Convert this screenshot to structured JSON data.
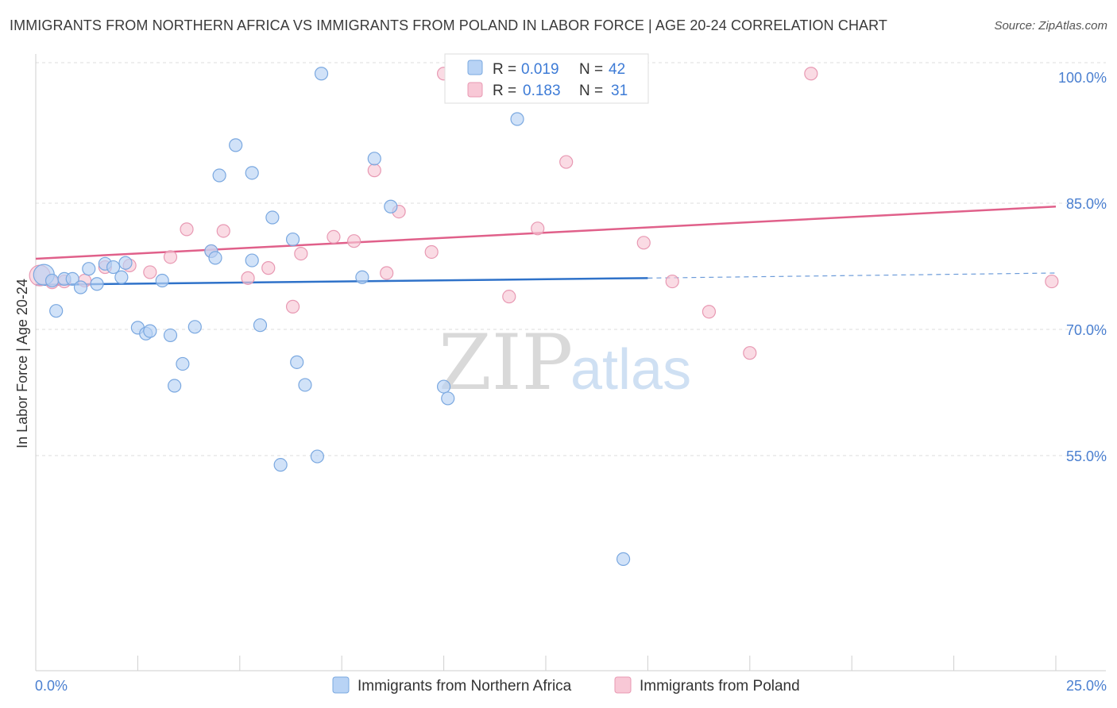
{
  "title": "IMMIGRANTS FROM NORTHERN AFRICA VS IMMIGRANTS FROM POLAND IN LABOR FORCE | AGE 20-24 CORRELATION CHART",
  "source": "Source: ZipAtlas.com",
  "watermark": {
    "zip": "ZIP",
    "atlas": "atlas"
  },
  "colors": {
    "blue_fill": "#b8d3f5",
    "blue_stroke": "#7aa8e0",
    "blue_line": "#2f72c9",
    "pink_fill": "#f8c8d6",
    "pink_stroke": "#e899b3",
    "pink_line": "#e0608a"
  },
  "legend": {
    "rows": [
      {
        "r_label": "R =",
        "r_value": "0.019",
        "n_label": "N =",
        "n_value": "42"
      },
      {
        "r_label": "R =",
        "r_value": "0.183",
        "n_label": "N =",
        "n_value": "31"
      }
    ]
  },
  "chart_data": {
    "type": "scatter",
    "title": "IMMIGRANTS FROM NORTHERN AFRICA VS IMMIGRANTS FROM POLAND IN LABOR FORCE | AGE 20-24 CORRELATION CHART",
    "xlabel": "",
    "ylabel": "In Labor Force | Age 20-24",
    "xlim": [
      0,
      25
    ],
    "ylim": [
      40,
      102
    ],
    "x_tick_labels": [
      "0.0%",
      "25.0%"
    ],
    "y_ticks": [
      55,
      70,
      85,
      100
    ],
    "y_tick_labels": [
      "55.0%",
      "70.0%",
      "85.0%",
      "100.0%"
    ],
    "grid": true,
    "legend_position": "top-center",
    "series": [
      {
        "name": "Immigrants from Northern Africa",
        "color": "#b8d3f5",
        "r": 0.019,
        "n": 42,
        "trend": {
          "x0": 0,
          "y0": 75.3,
          "x1": 15,
          "y1": 76.1,
          "dashed_to_x": 25,
          "dashed_to_y": 76.7
        },
        "points": [
          [
            0.2,
            76.5
          ],
          [
            0.4,
            75.8
          ],
          [
            0.5,
            72.2
          ],
          [
            0.7,
            76.0
          ],
          [
            0.9,
            76.0
          ],
          [
            1.1,
            75.0
          ],
          [
            1.3,
            77.2
          ],
          [
            1.5,
            75.4
          ],
          [
            1.7,
            77.8
          ],
          [
            1.9,
            77.4
          ],
          [
            2.1,
            76.2
          ],
          [
            2.2,
            77.9
          ],
          [
            2.5,
            70.2
          ],
          [
            2.7,
            69.5
          ],
          [
            2.8,
            69.8
          ],
          [
            3.1,
            75.8
          ],
          [
            3.3,
            69.3
          ],
          [
            3.4,
            63.3
          ],
          [
            3.6,
            65.9
          ],
          [
            3.9,
            70.3
          ],
          [
            4.3,
            79.3
          ],
          [
            4.4,
            78.5
          ],
          [
            4.5,
            88.3
          ],
          [
            4.9,
            91.9
          ],
          [
            5.3,
            88.6
          ],
          [
            5.3,
            78.2
          ],
          [
            5.5,
            70.5
          ],
          [
            5.8,
            83.3
          ],
          [
            6.0,
            53.9
          ],
          [
            6.3,
            80.7
          ],
          [
            6.4,
            66.1
          ],
          [
            6.6,
            63.4
          ],
          [
            6.9,
            54.9
          ],
          [
            7.0,
            100.4
          ],
          [
            8.0,
            76.2
          ],
          [
            8.3,
            90.3
          ],
          [
            8.7,
            84.6
          ],
          [
            10.0,
            63.2
          ],
          [
            10.1,
            61.8
          ],
          [
            11.8,
            95.0
          ],
          [
            13.6,
            100.4
          ],
          [
            14.4,
            42.7
          ]
        ]
      },
      {
        "name": "Immigrants from Poland",
        "color": "#f8c8d6",
        "r": 0.183,
        "n": 31,
        "trend": {
          "x0": 0,
          "y0": 78.4,
          "x1": 25,
          "y1": 84.6
        },
        "points": [
          [
            0.1,
            76.4
          ],
          [
            0.4,
            75.6
          ],
          [
            0.7,
            75.7
          ],
          [
            1.2,
            75.8
          ],
          [
            1.7,
            77.4
          ],
          [
            2.3,
            77.6
          ],
          [
            2.8,
            76.8
          ],
          [
            3.3,
            78.6
          ],
          [
            3.7,
            81.9
          ],
          [
            4.3,
            79.3
          ],
          [
            4.6,
            81.7
          ],
          [
            5.2,
            76.1
          ],
          [
            5.7,
            77.3
          ],
          [
            6.3,
            72.7
          ],
          [
            6.5,
            79.0
          ],
          [
            7.3,
            81.0
          ],
          [
            7.8,
            80.5
          ],
          [
            8.3,
            88.9
          ],
          [
            8.6,
            76.7
          ],
          [
            8.9,
            84.0
          ],
          [
            9.7,
            79.2
          ],
          [
            10.0,
            100.4
          ],
          [
            11.6,
            73.9
          ],
          [
            12.3,
            82.0
          ],
          [
            13.0,
            89.9
          ],
          [
            14.9,
            80.3
          ],
          [
            15.6,
            75.7
          ],
          [
            16.5,
            72.1
          ],
          [
            17.5,
            67.2
          ],
          [
            19.0,
            100.4
          ],
          [
            24.9,
            75.7
          ]
        ]
      }
    ]
  }
}
